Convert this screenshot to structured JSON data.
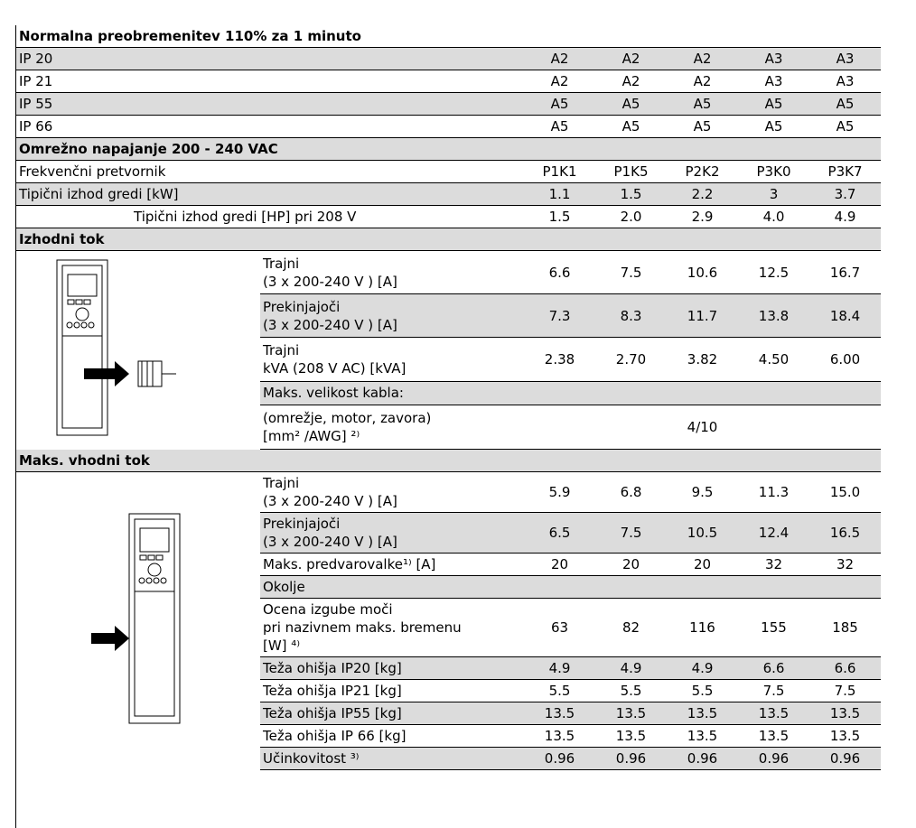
{
  "title": "Normalna preobremenitev 110% za 1 minuto",
  "enclosure_rows": [
    {
      "label": "IP 20",
      "values": [
        "A2",
        "A2",
        "A2",
        "A3",
        "A3"
      ]
    },
    {
      "label": "IP 21",
      "values": [
        "A2",
        "A2",
        "A2",
        "A3",
        "A3"
      ]
    },
    {
      "label": "IP 55",
      "values": [
        "A5",
        "A5",
        "A5",
        "A5",
        "A5"
      ]
    },
    {
      "label": "IP 66",
      "values": [
        "A5",
        "A5",
        "A5",
        "A5",
        "A5"
      ]
    }
  ],
  "supply": {
    "heading": "Omrežno napajanje 200 - 240 VAC",
    "rows": [
      {
        "label": "Frekvenčni pretvornik",
        "values": [
          "P1K1",
          "P1K5",
          "P2K2",
          "P3K0",
          "P3K7"
        ]
      },
      {
        "label": "Tipični izhod gredi [kW]",
        "values": [
          "1.1",
          "1.5",
          "2.2",
          "3",
          "3.7"
        ]
      },
      {
        "label": "Tipični izhod gredi [HP] pri 208 V",
        "values": [
          "1.5",
          "2.0",
          "2.9",
          "4.0",
          "4.9"
        ]
      }
    ]
  },
  "output_current": {
    "heading": "Izhodni tok",
    "rows": [
      {
        "label": [
          "Trajni",
          "(3 x 200-240 V ) [A]"
        ],
        "values": [
          "6.6",
          "7.5",
          "10.6",
          "12.5",
          "16.7"
        ]
      },
      {
        "label": [
          "Prekinjajoči",
          "(3 x 200-240 V ) [A]"
        ],
        "values": [
          "7.3",
          "8.3",
          "11.7",
          "13.8",
          "18.4"
        ]
      },
      {
        "label": [
          "Trajni",
          "kVA (208 V AC) [kVA]"
        ],
        "values": [
          "2.38",
          "2.70",
          "3.82",
          "4.50",
          "6.00"
        ]
      },
      {
        "label": [
          "Maks. velikost kabla:"
        ],
        "values": [
          null,
          null,
          null,
          null,
          null
        ]
      },
      {
        "label": [
          "(omrežje, motor, zavora)",
          "[mm² /AWG] ²⁾"
        ],
        "values": [
          null,
          null,
          "4/10",
          null,
          null
        ]
      }
    ]
  },
  "input_current": {
    "heading": "Maks. vhodni tok",
    "rows": [
      {
        "label": [
          "Trajni",
          "(3 x 200-240 V ) [A]"
        ],
        "values": [
          "5.9",
          "6.8",
          "9.5",
          "11.3",
          "15.0"
        ]
      },
      {
        "label": [
          "Prekinjajoči",
          "(3 x 200-240 V ) [A]"
        ],
        "values": [
          "6.5",
          "7.5",
          "10.5",
          "12.4",
          "16.5"
        ]
      },
      {
        "label": [
          "Maks. predvarovalke¹⁾ [A]"
        ],
        "values": [
          "20",
          "20",
          "20",
          "32",
          "32"
        ]
      },
      {
        "label": [
          "Okolje"
        ],
        "values": [
          null,
          null,
          null,
          null,
          null
        ]
      },
      {
        "label": [
          "Ocena izgube moči",
          "pri nazivnem maks. bremenu",
          "[W] ⁴⁾"
        ],
        "values": [
          "63",
          "82",
          "116",
          "155",
          "185"
        ]
      },
      {
        "label": [
          "Teža ohišja IP20 [kg]"
        ],
        "values": [
          "4.9",
          "4.9",
          "4.9",
          "6.6",
          "6.6"
        ]
      },
      {
        "label": [
          "Teža ohišja IP21 [kg]"
        ],
        "values": [
          "5.5",
          "5.5",
          "5.5",
          "7.5",
          "7.5"
        ]
      },
      {
        "label": [
          "Teža ohišja IP55 [kg]"
        ],
        "values": [
          "13.5",
          "13.5",
          "13.5",
          "13.5",
          "13.5"
        ]
      },
      {
        "label": [
          "Teža ohišja IP 66 [kg]"
        ],
        "values": [
          "13.5",
          "13.5",
          "13.5",
          "13.5",
          "13.5"
        ]
      },
      {
        "label": [
          "Učinkovitost ³⁾"
        ],
        "values": [
          "0.96",
          "0.96",
          "0.96",
          "0.96",
          "0.96"
        ]
      }
    ]
  }
}
